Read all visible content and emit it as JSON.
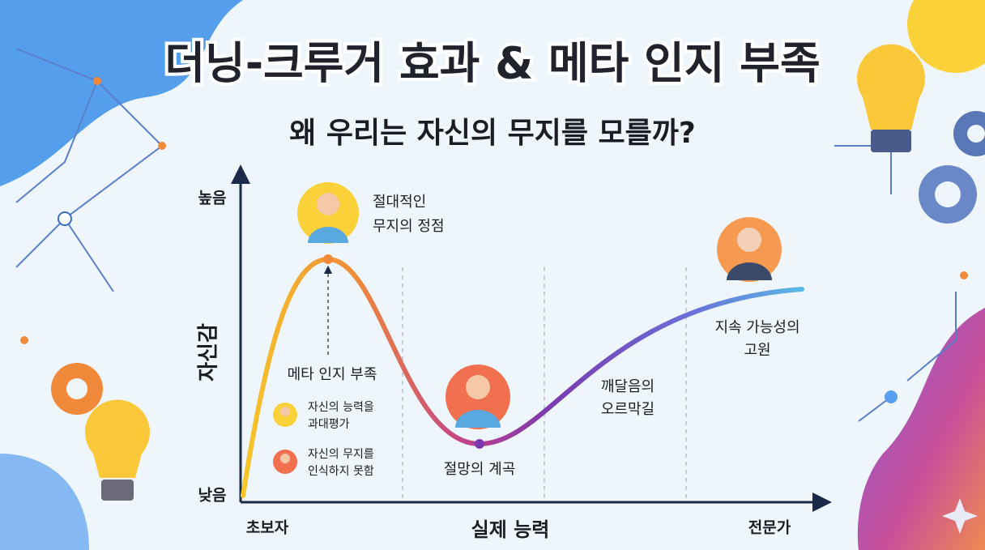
{
  "title": "더닝-크루거 효과 & 메타 인지 부족",
  "subtitle": "왜 우리는 자신의 무지를 모를까?",
  "y_axis": {
    "label": "자신감",
    "high": "높음",
    "low": "낮음"
  },
  "x_axis": {
    "label": "실제 능력",
    "start": "초보자",
    "end": "전문가"
  },
  "annotations": [
    {
      "lines": [
        "절대적인",
        "무지의 정점"
      ]
    },
    {
      "lines": [
        "메타 인지 부족"
      ]
    },
    {
      "lines": [
        "자신의 능력을",
        "과대평가"
      ]
    },
    {
      "lines": [
        "자신의 무지를",
        "인식하지 못함"
      ]
    },
    {
      "lines": [
        "절망의 계곡"
      ]
    },
    {
      "lines": [
        "깨달음의",
        "오르막길"
      ]
    },
    {
      "lines": [
        "지속 가능성의",
        "고원"
      ]
    }
  ]
}
